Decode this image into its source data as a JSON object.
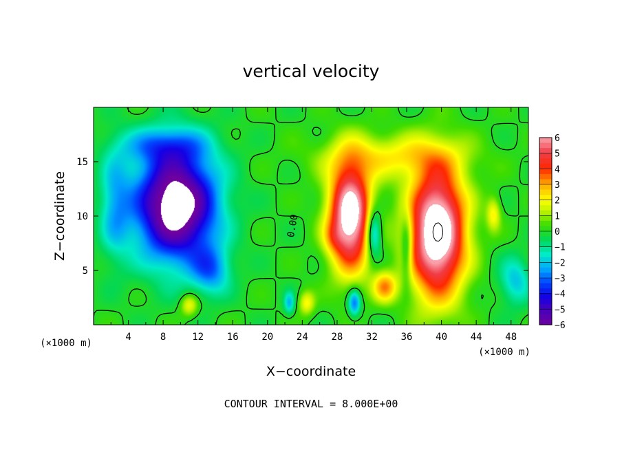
{
  "chart_data": {
    "type": "heatmap",
    "title": "vertical velocity",
    "xlabel": "X−coordinate",
    "ylabel": "Z−coordinate",
    "x_unit_label": "(×1000 m)",
    "y_unit_label": "(×1000 m)",
    "xlim": [
      0,
      50
    ],
    "ylim": [
      0,
      20
    ],
    "x_ticks": [
      4,
      8,
      12,
      16,
      20,
      24,
      28,
      32,
      36,
      40,
      44,
      48
    ],
    "y_ticks": [
      5,
      10,
      15
    ],
    "x_tick_labels": [
      "4",
      "8",
      "12",
      "16",
      "20",
      "24",
      "28",
      "32",
      "36",
      "40",
      "44",
      "48"
    ],
    "y_tick_labels": [
      "5",
      "10",
      "15"
    ],
    "colorbar": {
      "min": -6,
      "max": 6,
      "labels": [
        "6",
        "5",
        "4",
        "3",
        "2",
        "1",
        "0",
        "−1",
        "−2",
        "−3",
        "−4",
        "−5",
        "−6"
      ],
      "values": [
        6,
        5,
        4,
        3,
        2,
        1,
        0,
        -1,
        -2,
        -3,
        -4,
        -5,
        -6
      ]
    },
    "contour_label": "0.00",
    "footer": "CONTOUR INTERVAL = 8.000E+00",
    "features": [
      {
        "kind": "downdraft",
        "x": 9.5,
        "z": 11.0,
        "sx": 4.6,
        "sz": 5.0,
        "amplitude": -7.5
      },
      {
        "kind": "updraft",
        "x": 29.5,
        "z": 10.0,
        "sx": 2.4,
        "sz": 4.8,
        "amplitude": 7.5
      },
      {
        "kind": "updraft",
        "x": 39.5,
        "z": 8.5,
        "sx": 3.2,
        "sz": 5.8,
        "amplitude": 8.0
      }
    ]
  }
}
